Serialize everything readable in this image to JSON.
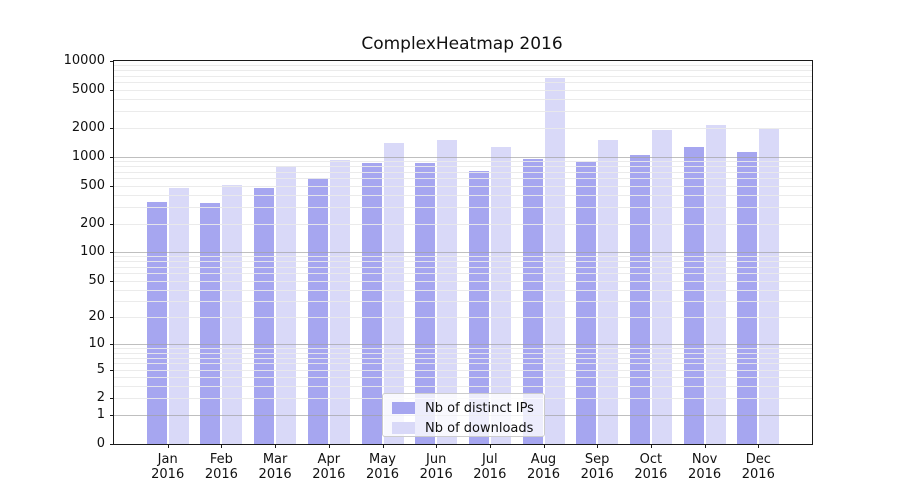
{
  "title": "ComplexHeatmap 2016",
  "chart_data": {
    "type": "bar",
    "title": "ComplexHeatmap 2016",
    "categories": [
      "Jan",
      "Feb",
      "Mar",
      "Apr",
      "May",
      "Jun",
      "Jul",
      "Aug",
      "Sep",
      "Oct",
      "Nov",
      "Dec"
    ],
    "year_label": "2016",
    "series": [
      {
        "name": "Nb of distinct IPs",
        "color": "#a6a6f0",
        "values": [
          340,
          330,
          470,
          600,
          870,
          855,
          710,
          955,
          890,
          1040,
          1270,
          1130
        ]
      },
      {
        "name": "Nb of downloads",
        "color": "#d9d9f8",
        "values": [
          470,
          510,
          800,
          925,
          1400,
          1500,
          1270,
          6700,
          1500,
          1900,
          2150,
          1940
        ]
      }
    ],
    "xlabel": "",
    "ylabel": "",
    "y_scale": "log1p",
    "y_ticks": [
      0,
      1,
      2,
      5,
      10,
      20,
      50,
      100,
      200,
      500,
      1000,
      2000,
      5000,
      10000
    ],
    "ylim": [
      0,
      10000
    ],
    "grid": "log minor + major horizontal",
    "legend_position": "lower center inside plot"
  },
  "legend": {
    "items": [
      {
        "label": "Nb of distinct IPs",
        "color": "#a6a6f0"
      },
      {
        "label": "Nb of downloads",
        "color": "#d9d9f8"
      }
    ]
  },
  "colors": {
    "background": "#ffffff",
    "axis": "#1a1a1a",
    "major_grid": "#a0a0a0",
    "minor_grid": "#e9e9e9",
    "text": "#111111",
    "ips_bar": "#a6a6f0",
    "downloads_bar": "#d9d9f8"
  }
}
